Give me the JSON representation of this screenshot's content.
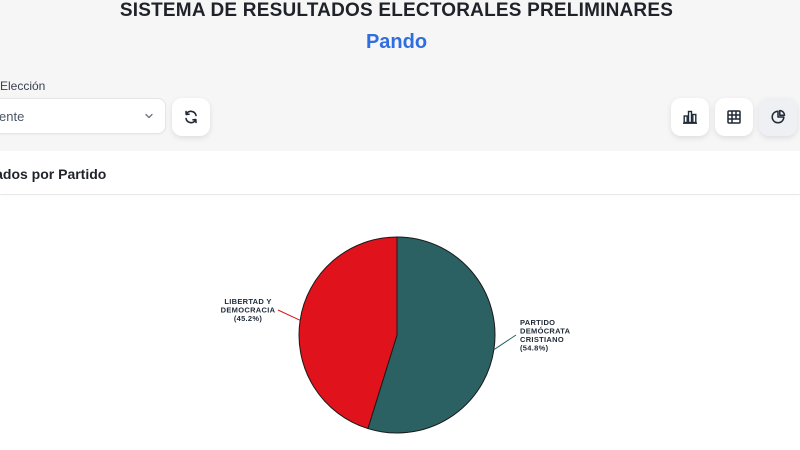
{
  "header": {
    "title": "SISTEMA DE RESULTADOS ELECTORALES PRELIMINARES",
    "subtitle": "Pando"
  },
  "filters": {
    "election_label": "Elección",
    "election_value": "ente"
  },
  "view_buttons": {
    "bar_icon": "bar-chart-icon",
    "table_icon": "table-icon",
    "pie_icon": "pie-chart-icon",
    "active": "pie"
  },
  "card": {
    "title": "ultados por Partido"
  },
  "colors": {
    "accent": "#2f6ee0",
    "pdc": "#2b6163",
    "libre": "#e0121b"
  },
  "chart_data": {
    "type": "pie",
    "slices": [
      {
        "name": "PARTIDO DEMÓCRATA CRISTIANO",
        "label_lines": [
          "PARTIDO",
          "DEMÓCRATA",
          "CRISTIANO",
          "(54.8%)"
        ],
        "value": 54.8,
        "color": "#2b6163"
      },
      {
        "name": "LIBERTAD Y DEMOCRACIA",
        "label_lines": [
          "LIBERTAD Y",
          "DEMOCRACIA",
          "(45.2%)"
        ],
        "value": 45.2,
        "color": "#e0121b"
      }
    ]
  }
}
